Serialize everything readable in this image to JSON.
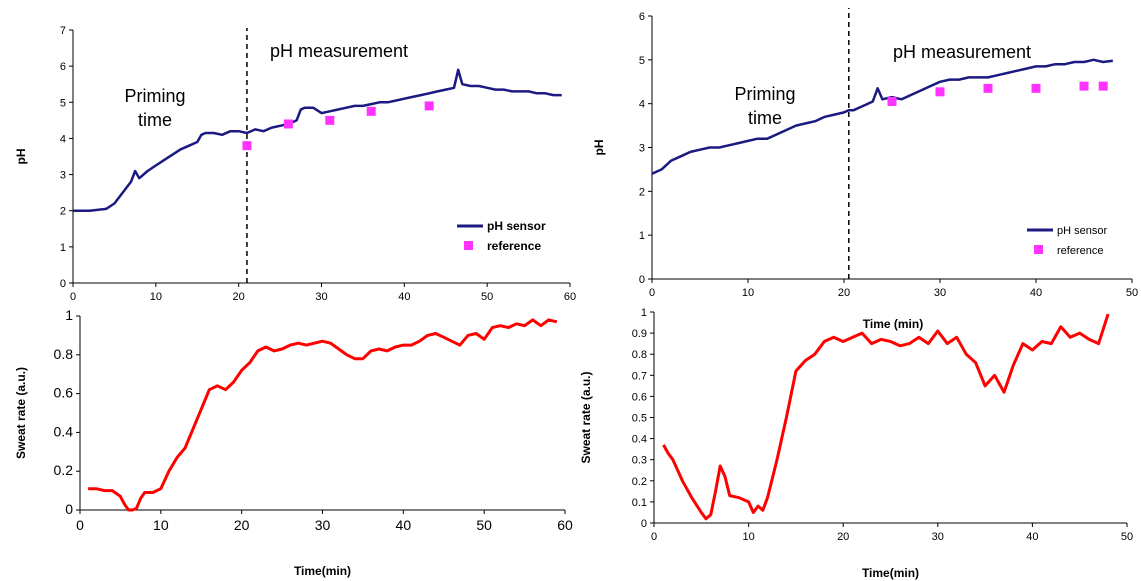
{
  "chart_data": [
    {
      "id": "ph_left",
      "type": "line",
      "xlim": [
        0,
        60
      ],
      "ylim": [
        0,
        7
      ],
      "xticks": [
        0,
        10,
        20,
        30,
        40,
        50,
        60
      ],
      "yticks": [
        0,
        1,
        2,
        3,
        4,
        5,
        6,
        7
      ],
      "xlabel": "",
      "ylabel": "pH",
      "colors": {
        "line": "#1a1a80",
        "marker": "#ff33ff"
      },
      "series": [
        {
          "name": "pH sensor",
          "kind": "line",
          "x": [
            0,
            2,
            4,
            5,
            6,
            7,
            7.5,
            8,
            9,
            10,
            11,
            12,
            13,
            14,
            15,
            15.5,
            16,
            17,
            18,
            19,
            20,
            21,
            22,
            23,
            24,
            25,
            26,
            27,
            27.5,
            28,
            29,
            30,
            31,
            32,
            33,
            34,
            35,
            36,
            37,
            38,
            39,
            40,
            41,
            42,
            43,
            44,
            45,
            46,
            46.5,
            47,
            48,
            49,
            50,
            51,
            52,
            53,
            54,
            55,
            56,
            57,
            58,
            59
          ],
          "y": [
            2.0,
            2.0,
            2.05,
            2.2,
            2.5,
            2.8,
            3.1,
            2.9,
            3.1,
            3.25,
            3.4,
            3.55,
            3.7,
            3.8,
            3.9,
            4.1,
            4.15,
            4.15,
            4.1,
            4.2,
            4.2,
            4.15,
            4.25,
            4.2,
            4.3,
            4.35,
            4.4,
            4.5,
            4.8,
            4.85,
            4.85,
            4.7,
            4.75,
            4.8,
            4.85,
            4.9,
            4.9,
            4.95,
            5.0,
            5.0,
            5.05,
            5.1,
            5.15,
            5.2,
            5.25,
            5.3,
            5.35,
            5.4,
            5.9,
            5.5,
            5.45,
            5.45,
            5.4,
            5.35,
            5.35,
            5.3,
            5.3,
            5.3,
            5.25,
            5.25,
            5.2,
            5.2
          ]
        },
        {
          "name": "reference",
          "kind": "markers",
          "x": [
            21,
            26,
            31,
            36,
            43
          ],
          "y": [
            3.8,
            4.4,
            4.5,
            4.75,
            4.9
          ]
        }
      ],
      "annotations": {
        "priming": [
          "Priming",
          "time"
        ],
        "measurement": "pH measurement"
      },
      "divider_x": 21,
      "legend": {
        "position": "bottom-right",
        "bold": true
      }
    },
    {
      "id": "sweat_left",
      "type": "line",
      "xlim": [
        0,
        60
      ],
      "ylim": [
        0,
        1
      ],
      "xticks": [
        0,
        10,
        20,
        30,
        40,
        50,
        60
      ],
      "yticks": [
        0,
        0.2,
        0.4,
        0.6,
        0.8,
        1
      ],
      "xlabel": "Time(min)",
      "ylabel": "Sweat rate (a.u.)",
      "colors": {
        "line": "#ff0000"
      },
      "series": [
        {
          "kind": "line",
          "x": [
            1,
            2,
            3,
            4,
            5,
            5.5,
            6,
            6.5,
            7,
            7.5,
            8,
            9,
            10,
            11,
            12,
            13,
            14,
            15,
            16,
            17,
            18,
            19,
            20,
            21,
            22,
            23,
            24,
            25,
            26,
            27,
            28,
            29,
            30,
            31,
            32,
            33,
            34,
            35,
            36,
            37,
            38,
            39,
            40,
            41,
            42,
            43,
            44,
            45,
            46,
            47,
            48,
            49,
            50,
            51,
            52,
            53,
            54,
            55,
            56,
            57,
            58,
            59
          ],
          "y": [
            0.11,
            0.11,
            0.1,
            0.1,
            0.07,
            0.03,
            0.0,
            0.0,
            0.01,
            0.06,
            0.09,
            0.09,
            0.11,
            0.2,
            0.27,
            0.32,
            0.42,
            0.52,
            0.62,
            0.64,
            0.62,
            0.66,
            0.72,
            0.76,
            0.82,
            0.84,
            0.82,
            0.83,
            0.85,
            0.86,
            0.85,
            0.86,
            0.87,
            0.86,
            0.83,
            0.8,
            0.78,
            0.78,
            0.82,
            0.83,
            0.82,
            0.84,
            0.85,
            0.85,
            0.87,
            0.9,
            0.91,
            0.89,
            0.87,
            0.85,
            0.9,
            0.91,
            0.88,
            0.94,
            0.95,
            0.94,
            0.96,
            0.95,
            0.98,
            0.95,
            0.98,
            0.97
          ]
        }
      ]
    },
    {
      "id": "ph_right",
      "type": "line",
      "xlim": [
        0,
        50
      ],
      "ylim": [
        0,
        6
      ],
      "xticks": [
        0,
        10,
        20,
        30,
        40,
        50
      ],
      "yticks": [
        0,
        1,
        2,
        3,
        4,
        5,
        6
      ],
      "xlabel": "Time (min)",
      "ylabel": "pH",
      "colors": {
        "line": "#1a1a80",
        "marker": "#ff33ff"
      },
      "series": [
        {
          "name": "pH sensor",
          "kind": "line",
          "x": [
            0,
            1,
            2,
            3,
            4,
            5,
            6,
            7,
            8,
            9,
            10,
            11,
            12,
            13,
            14,
            15,
            16,
            17,
            18,
            19,
            20,
            20.5,
            21,
            22,
            23,
            23.5,
            24,
            25,
            26,
            27,
            28,
            29,
            30,
            31,
            32,
            33,
            34,
            35,
            36,
            37,
            38,
            39,
            40,
            41,
            42,
            43,
            44,
            45,
            46,
            47,
            48
          ],
          "y": [
            2.4,
            2.5,
            2.7,
            2.8,
            2.9,
            2.95,
            3.0,
            3.0,
            3.05,
            3.1,
            3.15,
            3.2,
            3.2,
            3.3,
            3.4,
            3.5,
            3.55,
            3.6,
            3.7,
            3.75,
            3.8,
            3.85,
            3.85,
            3.95,
            4.05,
            4.35,
            4.1,
            4.15,
            4.1,
            4.2,
            4.3,
            4.4,
            4.5,
            4.55,
            4.55,
            4.6,
            4.6,
            4.6,
            4.65,
            4.7,
            4.75,
            4.8,
            4.85,
            4.85,
            4.9,
            4.9,
            4.95,
            4.95,
            5.0,
            4.95,
            4.98
          ]
        },
        {
          "name": "reference",
          "kind": "markers",
          "x": [
            25,
            30,
            35,
            40,
            45,
            47
          ],
          "y": [
            4.05,
            4.27,
            4.35,
            4.35,
            4.4,
            4.4
          ]
        }
      ],
      "annotations": {
        "priming": [
          "Priming",
          "time"
        ],
        "measurement": "pH measurement"
      },
      "divider_x": 20.5,
      "legend": {
        "position": "bottom-right",
        "bold": false
      }
    },
    {
      "id": "sweat_right",
      "type": "line",
      "xlim": [
        0,
        50
      ],
      "ylim": [
        0,
        1
      ],
      "xticks": [
        0,
        10,
        20,
        30,
        40,
        50
      ],
      "yticks": [
        0,
        0.1,
        0.2,
        0.3,
        0.4,
        0.5,
        0.6,
        0.7,
        0.8,
        0.9,
        1
      ],
      "xlabel": "Time(min)",
      "ylabel": "Sweat rate (a.u.)",
      "colors": {
        "line": "#ff0000"
      },
      "series": [
        {
          "kind": "line",
          "x": [
            1,
            1.5,
            2,
            3,
            4,
            5,
            5.5,
            6,
            6.5,
            7,
            7.5,
            8,
            9,
            10,
            10.5,
            11,
            11.5,
            12,
            13,
            14,
            15,
            16,
            17,
            18,
            19,
            20,
            21,
            22,
            23,
            24,
            25,
            26,
            27,
            28,
            29,
            30,
            31,
            32,
            33,
            34,
            35,
            36,
            37,
            38,
            39,
            40,
            41,
            42,
            43,
            44,
            45,
            46,
            47,
            48
          ],
          "y": [
            0.37,
            0.33,
            0.3,
            0.2,
            0.12,
            0.05,
            0.02,
            0.04,
            0.15,
            0.27,
            0.22,
            0.13,
            0.12,
            0.1,
            0.05,
            0.08,
            0.06,
            0.12,
            0.3,
            0.5,
            0.72,
            0.77,
            0.8,
            0.86,
            0.88,
            0.86,
            0.88,
            0.9,
            0.85,
            0.87,
            0.86,
            0.84,
            0.85,
            0.88,
            0.85,
            0.91,
            0.85,
            0.88,
            0.8,
            0.76,
            0.65,
            0.7,
            0.62,
            0.75,
            0.85,
            0.82,
            0.86,
            0.85,
            0.93,
            0.88,
            0.9,
            0.87,
            0.85,
            0.99
          ]
        }
      ]
    }
  ]
}
